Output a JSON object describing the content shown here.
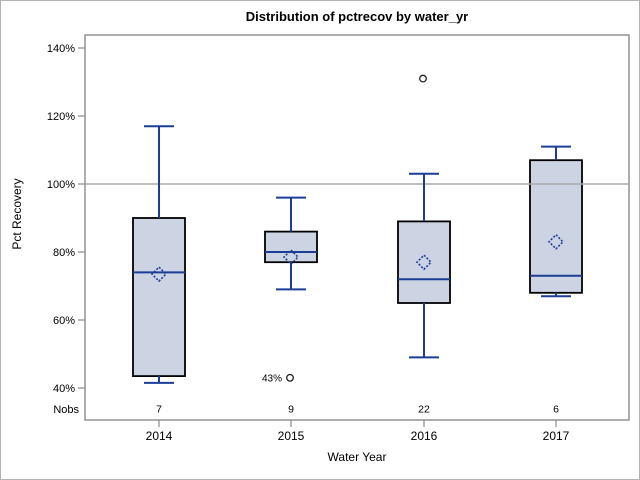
{
  "chart_data": {
    "type": "box",
    "title": "Distribution of pctrecov by water_yr",
    "xlabel": "Water Year",
    "ylabel": "Pct Recovery",
    "nobs_label": "Nobs",
    "ylim": [
      30,
      144
    ],
    "grid": false,
    "reference_line": 100,
    "y_ticks": [
      {
        "value": 40,
        "label": "40%"
      },
      {
        "value": 60,
        "label": "60%"
      },
      {
        "value": 80,
        "label": "80%"
      },
      {
        "value": 100,
        "label": "100%"
      },
      {
        "value": 120,
        "label": "120%"
      },
      {
        "value": 140,
        "label": "140%"
      }
    ],
    "categories": [
      "2014",
      "2015",
      "2016",
      "2017"
    ],
    "groups": [
      {
        "year": "2014",
        "nobs": "7",
        "whisker_low": 41.5,
        "q1": 43.5,
        "median": 74,
        "mean": 73.5,
        "q3": 90,
        "whisker_high": 117,
        "outliers": []
      },
      {
        "year": "2015",
        "nobs": "9",
        "whisker_low": 69,
        "q1": 77,
        "median": 80,
        "mean": 78.5,
        "q3": 86,
        "whisker_high": 96,
        "outliers": [
          {
            "value": 43,
            "label": "43%"
          }
        ]
      },
      {
        "year": "2016",
        "nobs": "22",
        "whisker_low": 49,
        "q1": 65,
        "median": 72,
        "mean": 77,
        "q3": 89,
        "whisker_high": 103,
        "outliers": [
          {
            "value": 131,
            "label": ""
          }
        ]
      },
      {
        "year": "2017",
        "nobs": "6",
        "whisker_low": 67,
        "q1": 68,
        "median": 73,
        "mean": 83,
        "q3": 107,
        "whisker_high": 111,
        "outliers": []
      }
    ],
    "colors": {
      "box_fill": "#ccd4e4",
      "box_border": "#000000",
      "line_blue": "#1c3d96",
      "reference_line": "#a8a8a8",
      "frame_border": "#8a8a8a",
      "outlier_stroke": "#222222",
      "text": "#000000"
    }
  }
}
